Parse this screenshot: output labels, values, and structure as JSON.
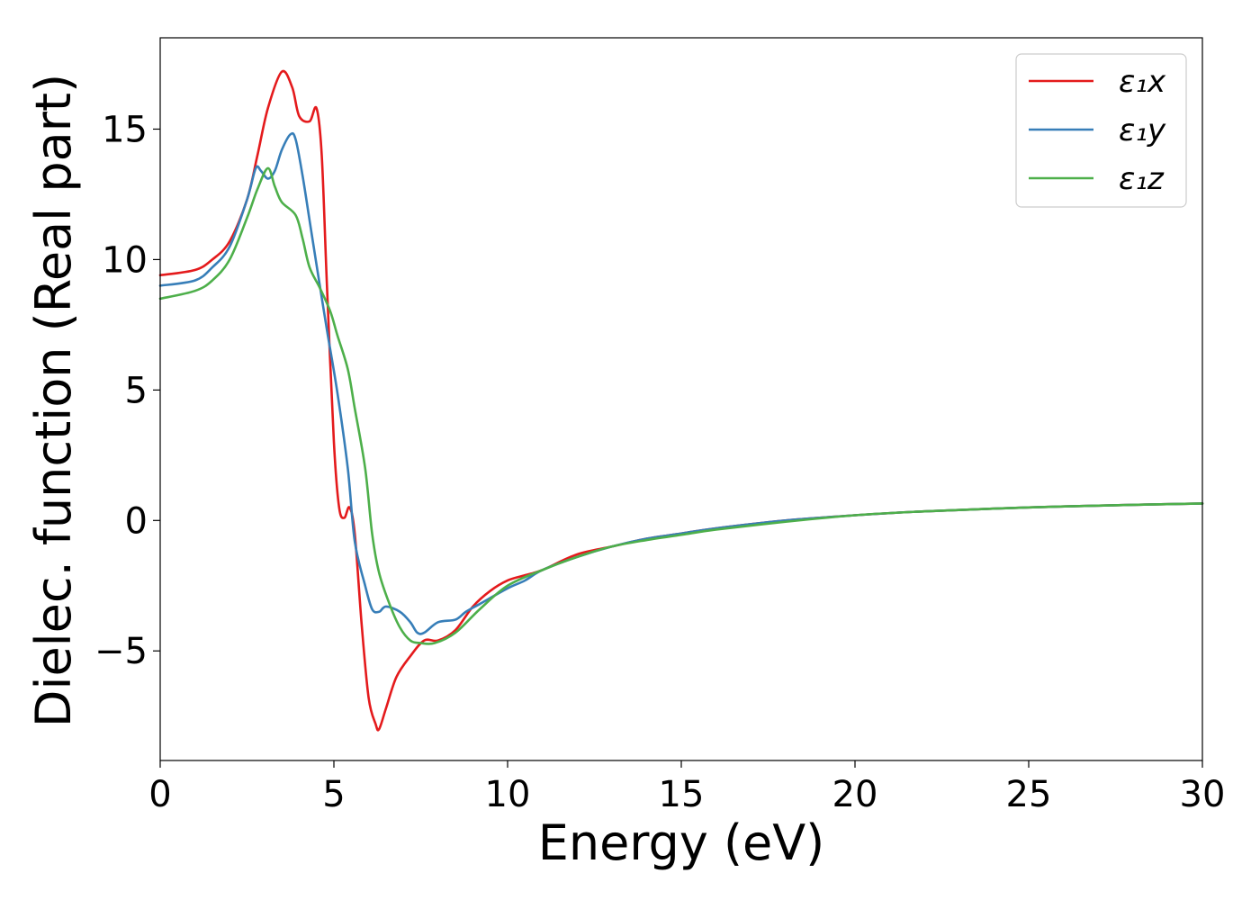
{
  "chart_data": {
    "type": "line",
    "title": "",
    "xlabel": "Energy (eV)",
    "ylabel": "Dielec. function (Real part)",
    "xlim": [
      0,
      30
    ],
    "ylim": [
      -9.2,
      18.5
    ],
    "xticks": [
      0,
      5,
      10,
      15,
      20,
      25,
      30
    ],
    "xtick_labels": [
      "0",
      "5",
      "10",
      "15",
      "20",
      "25",
      "30"
    ],
    "yticks": [
      -5,
      0,
      5,
      10,
      15
    ],
    "ytick_labels": [
      "−5",
      "0",
      "5",
      "10",
      "15"
    ],
    "grid": false,
    "legend_position": "top-right",
    "series": [
      {
        "name": "ε₁x",
        "color": "#e41a1c",
        "points": [
          [
            0,
            9.4
          ],
          [
            1,
            9.6
          ],
          [
            1.5,
            10.0
          ],
          [
            2,
            10.7
          ],
          [
            2.5,
            12.3
          ],
          [
            2.8,
            14.0
          ],
          [
            3.1,
            15.8
          ],
          [
            3.5,
            17.2
          ],
          [
            3.8,
            16.6
          ],
          [
            4.0,
            15.5
          ],
          [
            4.3,
            15.3
          ],
          [
            4.5,
            15.8
          ],
          [
            4.65,
            14.0
          ],
          [
            4.8,
            9.0
          ],
          [
            5.0,
            3.0
          ],
          [
            5.15,
            0.5
          ],
          [
            5.3,
            0.1
          ],
          [
            5.45,
            0.5
          ],
          [
            5.6,
            -0.5
          ],
          [
            5.8,
            -4.0
          ],
          [
            6.0,
            -6.8
          ],
          [
            6.2,
            -7.8
          ],
          [
            6.3,
            -8.0
          ],
          [
            6.5,
            -7.2
          ],
          [
            6.8,
            -6.0
          ],
          [
            7.2,
            -5.2
          ],
          [
            7.6,
            -4.6
          ],
          [
            8.0,
            -4.6
          ],
          [
            8.5,
            -4.2
          ],
          [
            9.0,
            -3.3
          ],
          [
            9.5,
            -2.7
          ],
          [
            10.0,
            -2.3
          ],
          [
            10.5,
            -2.1
          ],
          [
            11,
            -1.9
          ],
          [
            12,
            -1.3
          ],
          [
            13,
            -1.0
          ],
          [
            14,
            -0.7
          ],
          [
            15,
            -0.5
          ],
          [
            16,
            -0.3
          ],
          [
            18,
            0.0
          ],
          [
            20,
            0.2
          ],
          [
            22,
            0.35
          ],
          [
            25,
            0.5
          ],
          [
            28,
            0.6
          ],
          [
            30,
            0.65
          ]
        ]
      },
      {
        "name": "ε₁y",
        "color": "#377eb8",
        "points": [
          [
            0,
            9.0
          ],
          [
            1,
            9.2
          ],
          [
            1.5,
            9.7
          ],
          [
            2,
            10.5
          ],
          [
            2.5,
            12.3
          ],
          [
            2.75,
            13.5
          ],
          [
            2.9,
            13.4
          ],
          [
            3.1,
            13.1
          ],
          [
            3.3,
            13.4
          ],
          [
            3.5,
            14.2
          ],
          [
            3.75,
            14.8
          ],
          [
            3.9,
            14.6
          ],
          [
            4.1,
            13.2
          ],
          [
            4.3,
            11.5
          ],
          [
            4.5,
            9.8
          ],
          [
            4.8,
            7.3
          ],
          [
            5.1,
            4.9
          ],
          [
            5.4,
            2.0
          ],
          [
            5.6,
            -0.8
          ],
          [
            5.9,
            -2.5
          ],
          [
            6.1,
            -3.4
          ],
          [
            6.3,
            -3.5
          ],
          [
            6.5,
            -3.3
          ],
          [
            6.9,
            -3.5
          ],
          [
            7.2,
            -3.9
          ],
          [
            7.4,
            -4.3
          ],
          [
            7.6,
            -4.3
          ],
          [
            8.0,
            -3.9
          ],
          [
            8.5,
            -3.8
          ],
          [
            8.8,
            -3.5
          ],
          [
            9.2,
            -3.2
          ],
          [
            10,
            -2.6
          ],
          [
            10.5,
            -2.3
          ],
          [
            11,
            -1.9
          ],
          [
            12,
            -1.4
          ],
          [
            13,
            -1.0
          ],
          [
            14,
            -0.7
          ],
          [
            15,
            -0.5
          ],
          [
            16,
            -0.3
          ],
          [
            18,
            0.0
          ],
          [
            20,
            0.2
          ],
          [
            22,
            0.35
          ],
          [
            25,
            0.5
          ],
          [
            28,
            0.6
          ],
          [
            30,
            0.65
          ]
        ]
      },
      {
        "name": "ε₁z",
        "color": "#4daf4a",
        "points": [
          [
            0,
            8.5
          ],
          [
            1,
            8.8
          ],
          [
            1.5,
            9.2
          ],
          [
            2,
            10.0
          ],
          [
            2.5,
            11.6
          ],
          [
            2.8,
            12.7
          ],
          [
            3.1,
            13.5
          ],
          [
            3.3,
            12.8
          ],
          [
            3.5,
            12.2
          ],
          [
            3.9,
            11.7
          ],
          [
            4.1,
            10.8
          ],
          [
            4.3,
            9.7
          ],
          [
            4.6,
            8.9
          ],
          [
            4.9,
            8.0
          ],
          [
            5.1,
            7.1
          ],
          [
            5.4,
            5.8
          ],
          [
            5.6,
            4.3
          ],
          [
            5.9,
            2.0
          ],
          [
            6.1,
            -0.5
          ],
          [
            6.3,
            -2.0
          ],
          [
            6.6,
            -3.2
          ],
          [
            6.9,
            -4.1
          ],
          [
            7.2,
            -4.6
          ],
          [
            7.5,
            -4.7
          ],
          [
            7.9,
            -4.7
          ],
          [
            8.5,
            -4.3
          ],
          [
            9.2,
            -3.4
          ],
          [
            10,
            -2.5
          ],
          [
            11,
            -1.9
          ],
          [
            12,
            -1.4
          ],
          [
            13,
            -1.0
          ],
          [
            14,
            -0.75
          ],
          [
            15,
            -0.55
          ],
          [
            16,
            -0.35
          ],
          [
            18,
            -0.05
          ],
          [
            20,
            0.2
          ],
          [
            22,
            0.35
          ],
          [
            25,
            0.5
          ],
          [
            28,
            0.6
          ],
          [
            30,
            0.65
          ]
        ]
      }
    ]
  }
}
